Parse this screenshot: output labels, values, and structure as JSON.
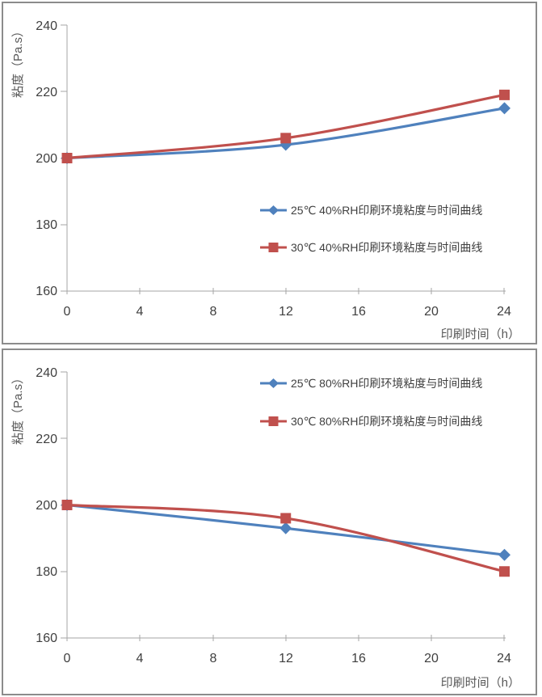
{
  "chart_data": [
    {
      "type": "line",
      "x": [
        0,
        12,
        24
      ],
      "xticks": [
        0,
        4,
        8,
        12,
        16,
        20,
        24
      ],
      "yticks": [
        240,
        220,
        200,
        180,
        160
      ],
      "xlim": [
        0,
        24
      ],
      "ylim": [
        160,
        240
      ],
      "xlabel": "印刷时间（h）",
      "ylabel": "粘度（Pa.s）",
      "grid": false,
      "smooth": true,
      "legend_position": "inside-center-right",
      "series": [
        {
          "name": "25℃ 40%RH印刷环境粘度与时间曲线",
          "values": [
            200,
            204,
            215
          ],
          "color": "#4F81BD",
          "marker": "diamond"
        },
        {
          "name": "30℃ 40%RH印刷环境粘度与时间曲线",
          "values": [
            200,
            206,
            219
          ],
          "color": "#C0504D",
          "marker": "square"
        }
      ]
    },
    {
      "type": "line",
      "x": [
        0,
        12,
        24
      ],
      "xticks": [
        0,
        4,
        8,
        12,
        16,
        20,
        24
      ],
      "yticks": [
        240,
        220,
        200,
        180,
        160
      ],
      "xlim": [
        0,
        24
      ],
      "ylim": [
        160,
        240
      ],
      "xlabel": "印刷时间（h）",
      "ylabel": "粘度（Pa.s）",
      "grid": false,
      "smooth": true,
      "legend_position": "inside-top-right",
      "series": [
        {
          "name": "25℃ 80%RH印刷环境粘度与时间曲线",
          "values": [
            200,
            193,
            185
          ],
          "color": "#4F81BD",
          "marker": "diamond"
        },
        {
          "name": "30℃ 80%RH印刷环境粘度与时间曲线",
          "values": [
            200,
            196,
            180
          ],
          "color": "#C0504D",
          "marker": "square"
        }
      ]
    }
  ]
}
